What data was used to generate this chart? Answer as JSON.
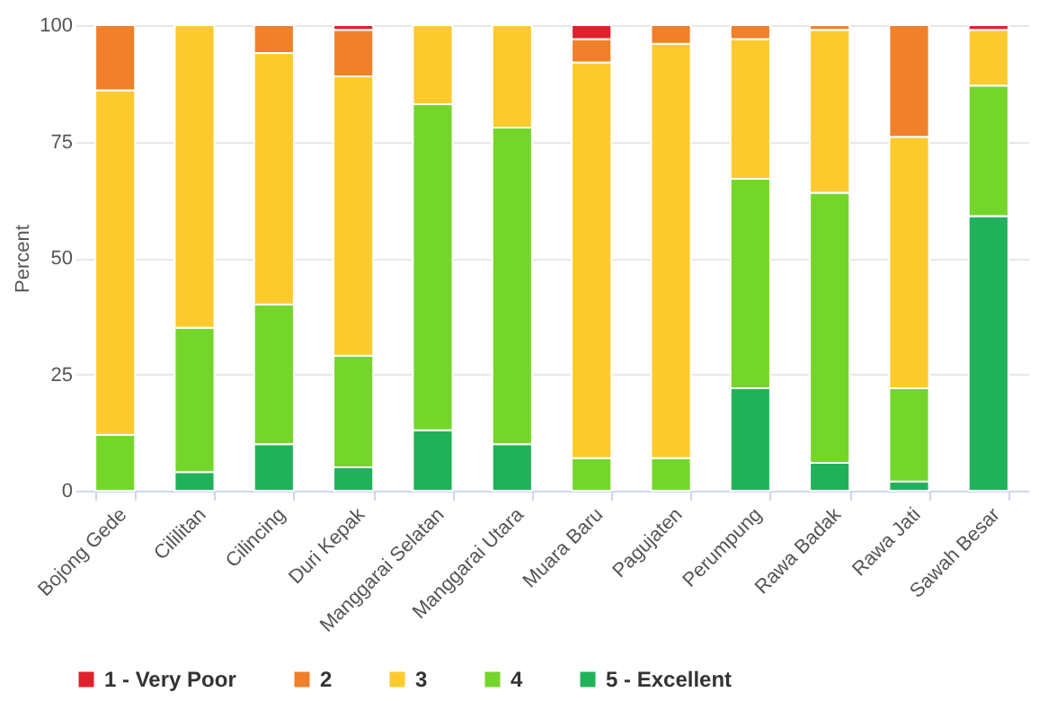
{
  "chart_data": {
    "type": "bar",
    "stacked": true,
    "ylabel": "Percent",
    "ylim": [
      0,
      100
    ],
    "yticks": [
      0,
      25,
      50,
      75,
      100
    ],
    "grid": "y",
    "legend": "bottom",
    "categories": [
      "Bojong Gede",
      "Cililitan",
      "Cilincing",
      "Duri Kepak",
      "Manggarai Selatan",
      "Manggarai Utara",
      "Muara Baru",
      "Pagujaten",
      "Perumpung",
      "Rawa Badak",
      "Rawa Jati",
      "Sawah Besar"
    ],
    "series": [
      {
        "name": "5 - Excellent",
        "color": "#20b25a",
        "values": [
          0,
          4,
          10,
          5,
          13,
          10,
          0,
          0,
          22,
          6,
          2,
          59
        ]
      },
      {
        "name": "4",
        "color": "#74d62a",
        "values": [
          12,
          31,
          30,
          24,
          70,
          68,
          7,
          7,
          45,
          58,
          20,
          28
        ]
      },
      {
        "name": "3",
        "color": "#fdca2e",
        "values": [
          74,
          65,
          54,
          60,
          17,
          22,
          85,
          89,
          30,
          35,
          54,
          12
        ]
      },
      {
        "name": "2",
        "color": "#f0802a",
        "values": [
          14,
          0,
          6,
          10,
          0,
          0,
          5,
          4,
          3,
          1,
          24,
          0
        ]
      },
      {
        "name": "1 - Very Poor",
        "color": "#e2202c",
        "values": [
          0,
          0,
          0,
          1,
          0,
          0,
          3,
          0,
          0,
          0,
          0,
          1
        ]
      }
    ]
  }
}
